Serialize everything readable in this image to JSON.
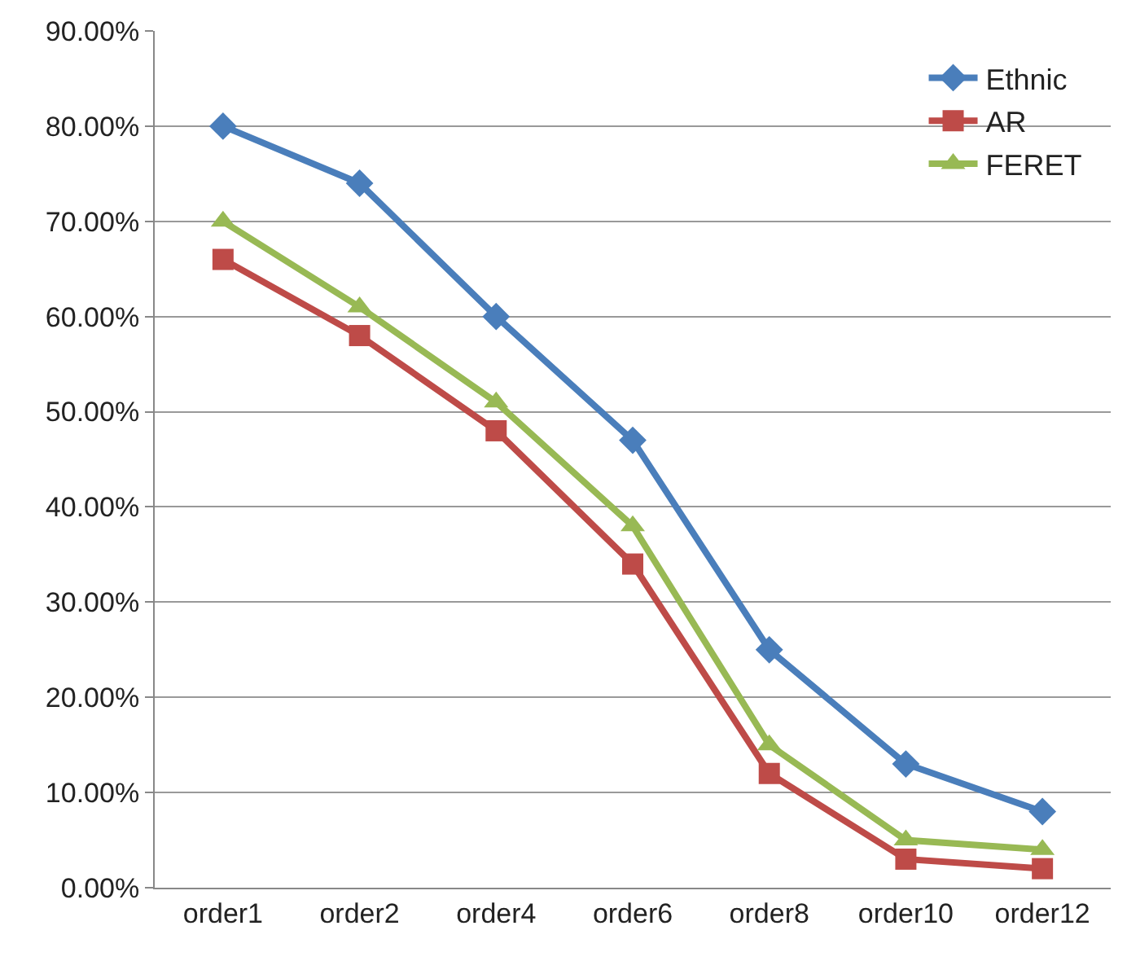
{
  "chart_data": {
    "type": "line",
    "categories": [
      "order1",
      "order2",
      "order4",
      "order6",
      "order8",
      "order10",
      "order12"
    ],
    "series": [
      {
        "name": "Ethnic",
        "color": "#4a7ebb",
        "marker": "diamond",
        "values": [
          80,
          74,
          60,
          47,
          25,
          13,
          8
        ]
      },
      {
        "name": "AR",
        "color": "#be4b48",
        "marker": "square",
        "values": [
          66,
          58,
          48,
          34,
          12,
          3,
          2
        ]
      },
      {
        "name": "FERET",
        "color": "#98b954",
        "marker": "triangle",
        "values": [
          70,
          61,
          51,
          38,
          15,
          5,
          4
        ]
      }
    ],
    "ylim": [
      0,
      90
    ],
    "yticks": [
      {
        "value": 0,
        "label": "0.00%"
      },
      {
        "value": 10,
        "label": "10.00%"
      },
      {
        "value": 20,
        "label": "20.00%"
      },
      {
        "value": 30,
        "label": "30.00%"
      },
      {
        "value": 40,
        "label": "40.00%"
      },
      {
        "value": 50,
        "label": "50.00%"
      },
      {
        "value": 60,
        "label": "60.00%"
      },
      {
        "value": 70,
        "label": "70.00%"
      },
      {
        "value": 80,
        "label": "80.00%"
      },
      {
        "value": 90,
        "label": "90.00%"
      }
    ],
    "grid": "y",
    "legend": "top right",
    "line_style": "solid"
  }
}
